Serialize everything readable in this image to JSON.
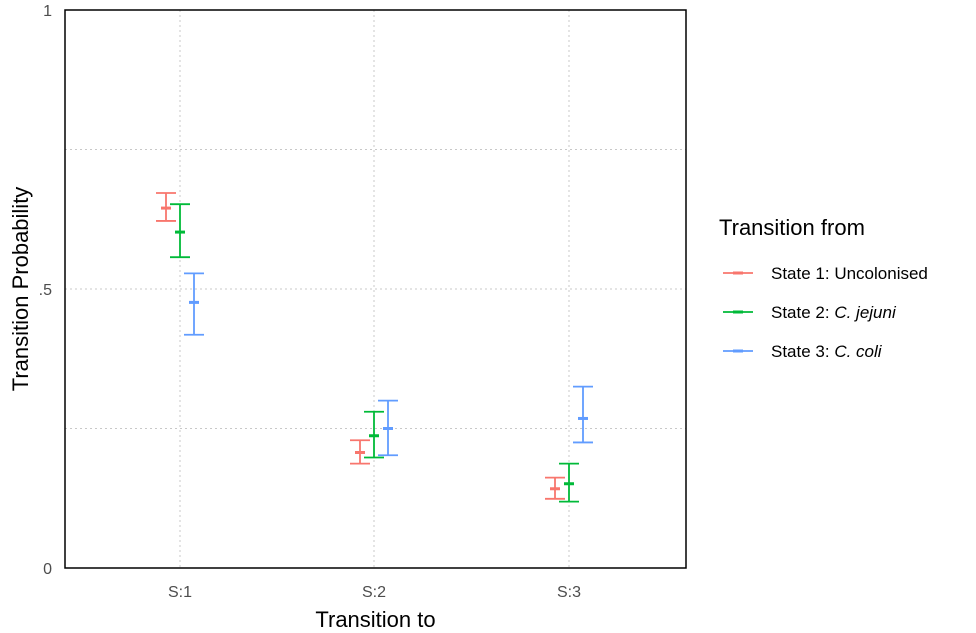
{
  "chart_data": {
    "type": "errorbar",
    "xlabel": "Transition to",
    "ylabel": "Transition Probability",
    "categories": [
      "S:1",
      "S:2",
      "S:3"
    ],
    "ylim": [
      0,
      1
    ],
    "yticks": [
      0,
      0.25,
      0.5,
      0.75,
      1
    ],
    "ytick_labels": [
      "0",
      "",
      ".5",
      "",
      "1"
    ],
    "grid": true,
    "legend_position": "right",
    "legend": {
      "title": "Transition from",
      "entries": [
        {
          "prefix": "State 1: ",
          "name": "Uncolonised",
          "italic": false
        },
        {
          "prefix": "State 2: ",
          "name": "C. jejuni",
          "italic": true
        },
        {
          "prefix": "State 3: ",
          "name": "C. coli",
          "italic": true
        }
      ]
    },
    "series": [
      {
        "name": "State 1: Uncolonised",
        "color": "#F8766D",
        "estimates": [
          0.645,
          0.207,
          0.142
        ],
        "lower": [
          0.622,
          0.187,
          0.124
        ],
        "upper": [
          0.672,
          0.229,
          0.162
        ]
      },
      {
        "name": "State 2: C. jejuni",
        "color": "#00BA38",
        "estimates": [
          0.602,
          0.237,
          0.151
        ],
        "lower": [
          0.557,
          0.198,
          0.119
        ],
        "upper": [
          0.652,
          0.28,
          0.187
        ]
      },
      {
        "name": "State 3: C. coli",
        "color": "#619CFF",
        "estimates": [
          0.476,
          0.25,
          0.268
        ],
        "lower": [
          0.418,
          0.202,
          0.225
        ],
        "upper": [
          0.528,
          0.3,
          0.325
        ]
      }
    ]
  }
}
